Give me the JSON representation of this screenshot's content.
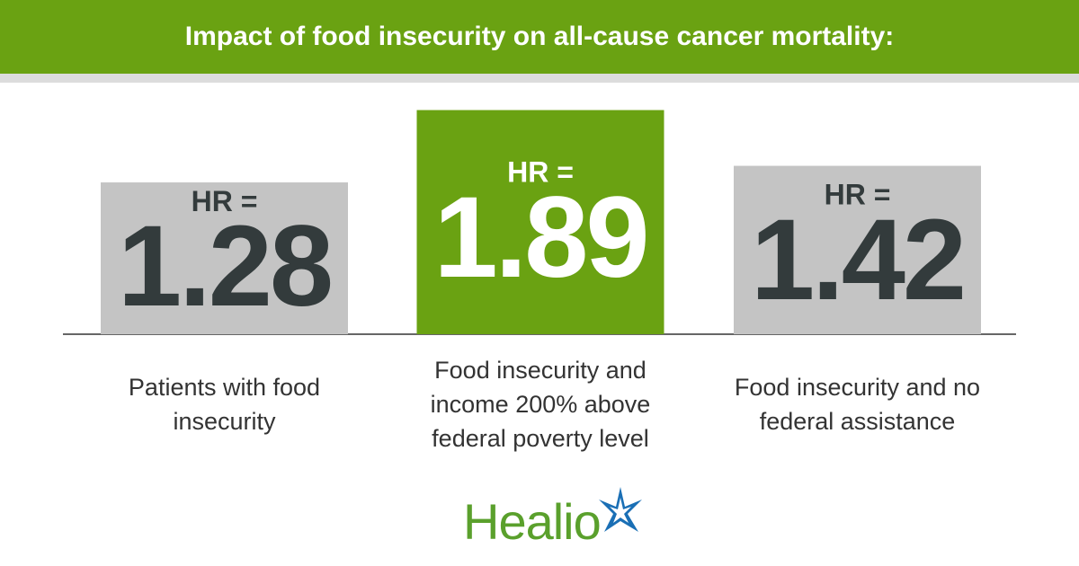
{
  "chart_data": {
    "type": "bar",
    "title": "Impact of food insecurity on all-cause cancer mortality:",
    "value_caption": "HR =",
    "categories": [
      "Patients with food insecurity",
      "Food insecurity and income 200% above federal poverty level",
      "Food insecurity and no federal assistance"
    ],
    "values": [
      1.28,
      1.89,
      1.42
    ],
    "colors": [
      "#c4c4c4",
      "#6aa212",
      "#c4c4c4"
    ],
    "ylim": [
      0,
      2
    ]
  },
  "logo": "Healio"
}
